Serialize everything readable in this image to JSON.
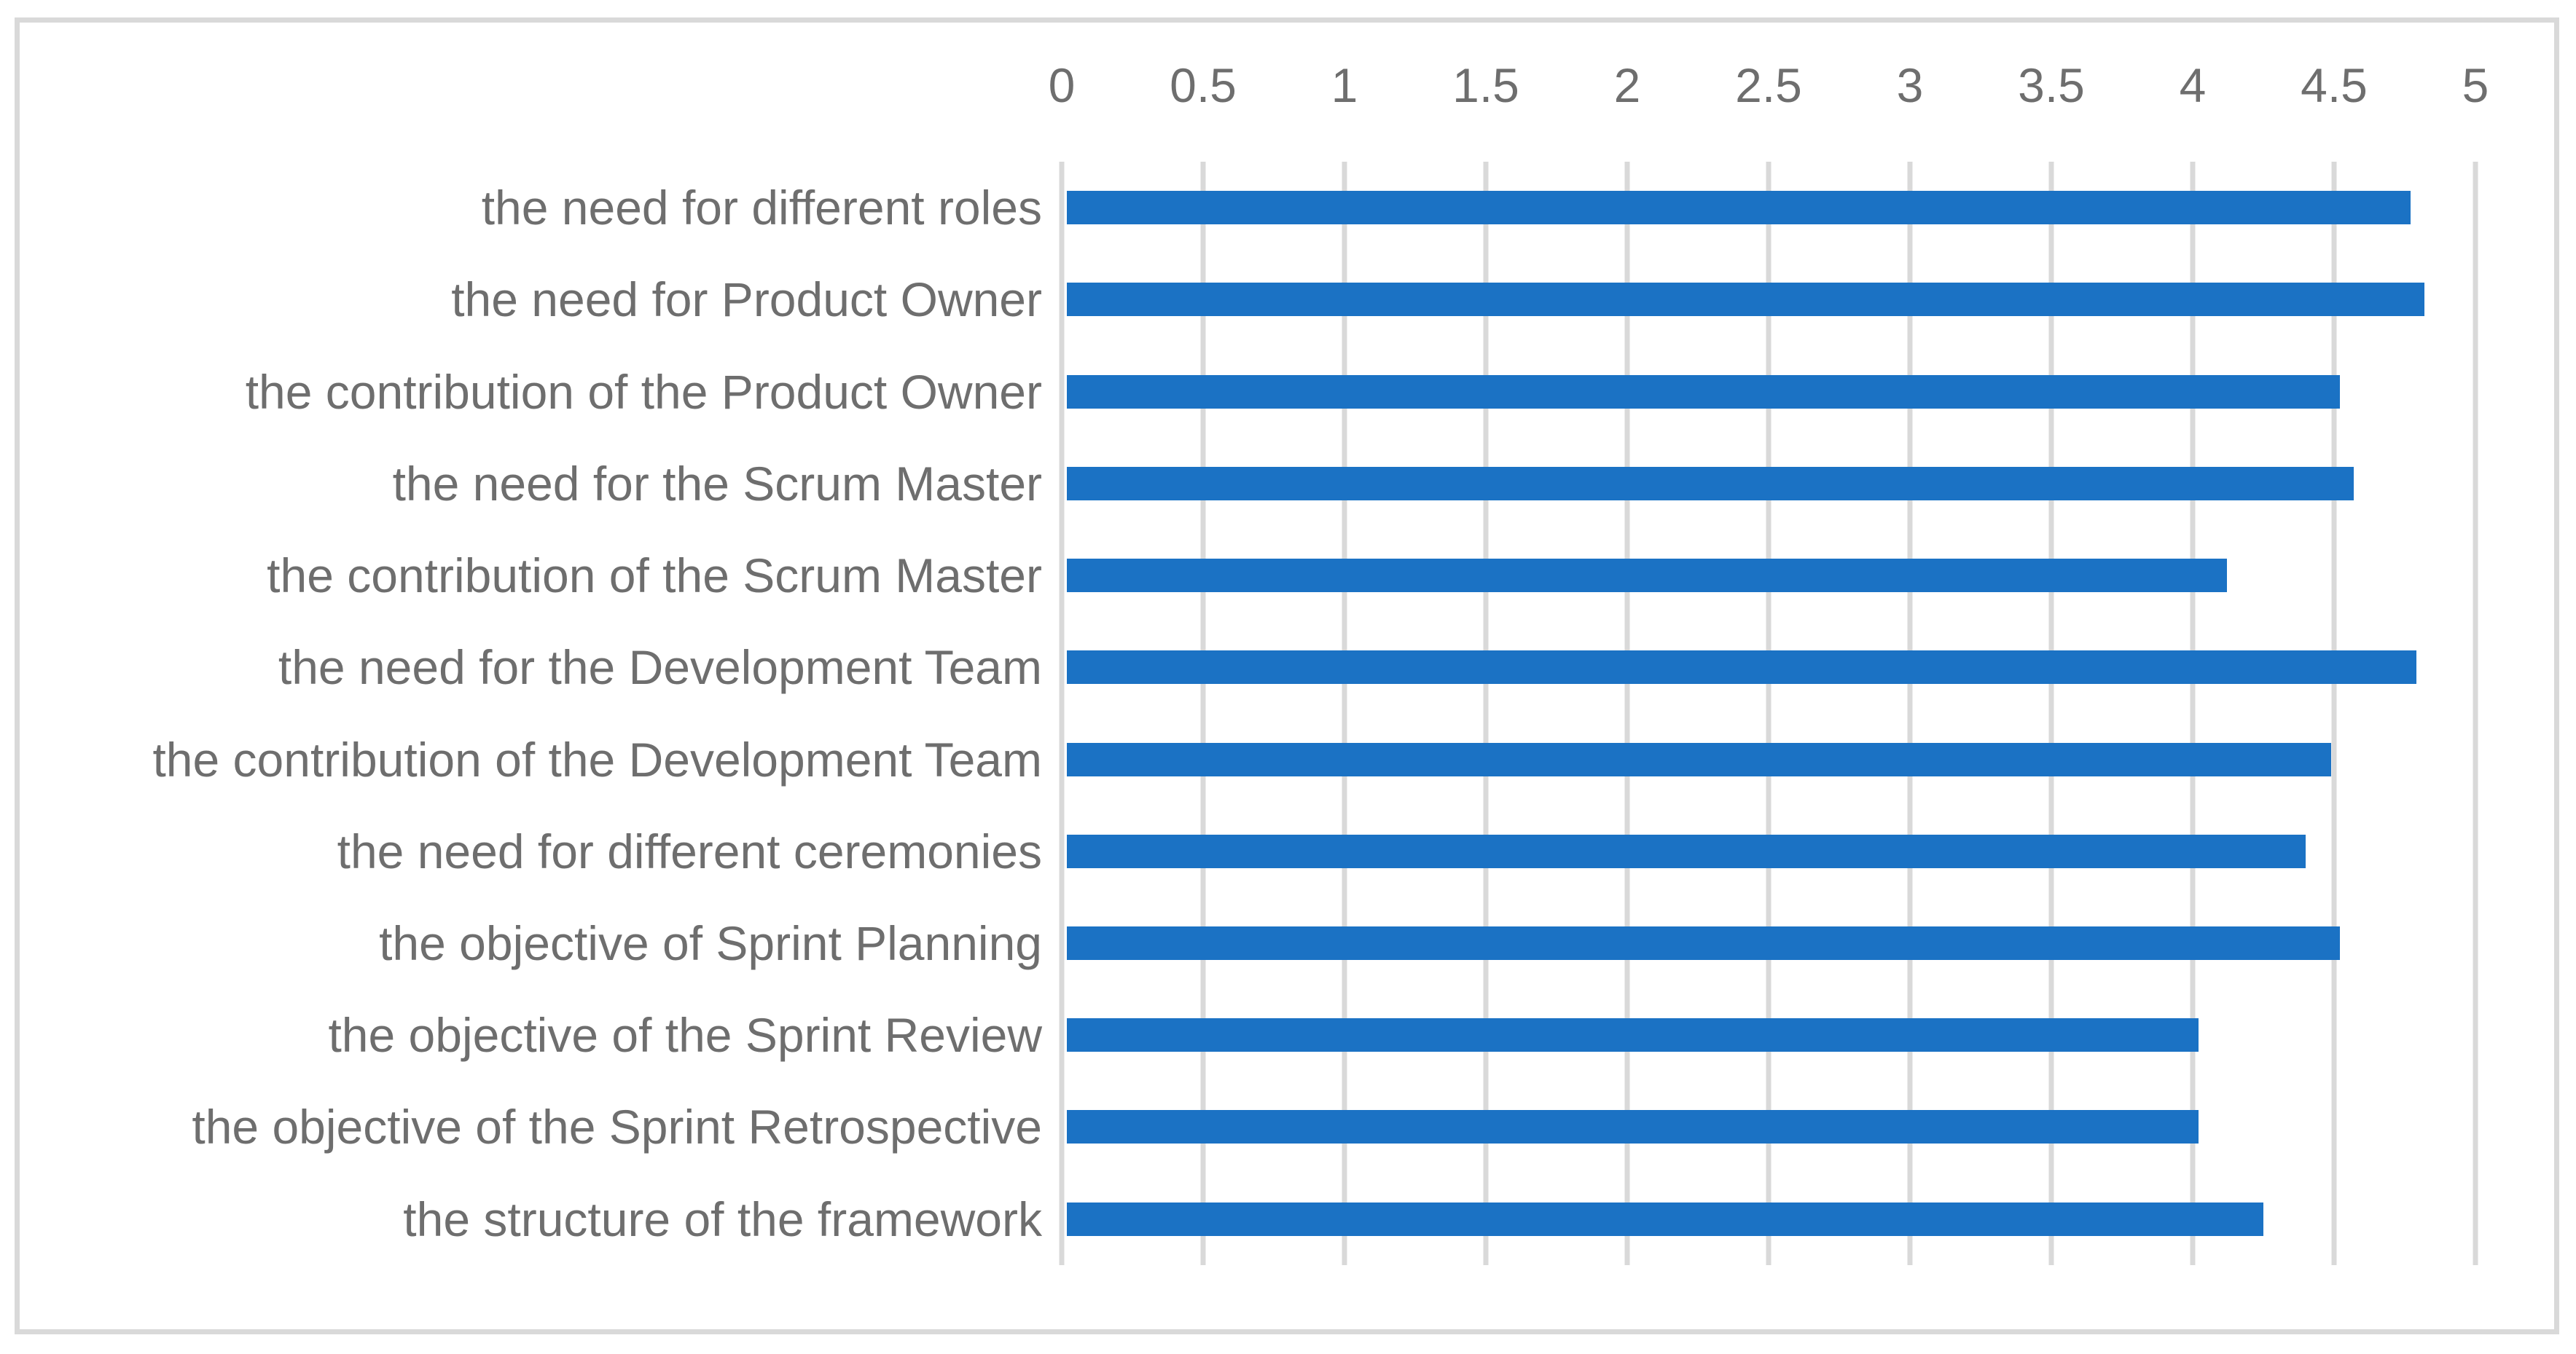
{
  "chart_data": {
    "type": "bar",
    "orientation": "horizontal",
    "title": "",
    "xlabel": "",
    "ylabel": "",
    "categories": [
      "the need for different roles",
      "the need for Product Owner",
      "the contribution of the Product Owner",
      "the need for the Scrum Master",
      "the contribution of the Scrum Master",
      "the need for the Development Team",
      "the contribution of the Development Team",
      "the need for different ceremonies",
      "the objective of Sprint Planning",
      "the objective of the Sprint Review",
      "the objective of the Sprint Retrospective",
      "the structure of the framework"
    ],
    "values": [
      4.77,
      4.82,
      4.52,
      4.57,
      4.12,
      4.79,
      4.49,
      4.4,
      4.52,
      4.02,
      4.02,
      4.25
    ],
    "xlim": [
      0,
      5
    ],
    "x_tick_step": 0.5,
    "x_ticks": [
      "0",
      "0.5",
      "1",
      "1.5",
      "2",
      "2.5",
      "3",
      "3.5",
      "4",
      "4.5",
      "5"
    ],
    "axis_labels_position": "top",
    "grid": "vertical",
    "legend": "none",
    "colors": {
      "bar": "#1B72C4",
      "gridline": "#D9D9D9",
      "frame_border": "#D9D9D9",
      "tick_label": "#6E6E6E",
      "category_label": "#6E6E6E",
      "background": "#FFFFFF"
    }
  }
}
